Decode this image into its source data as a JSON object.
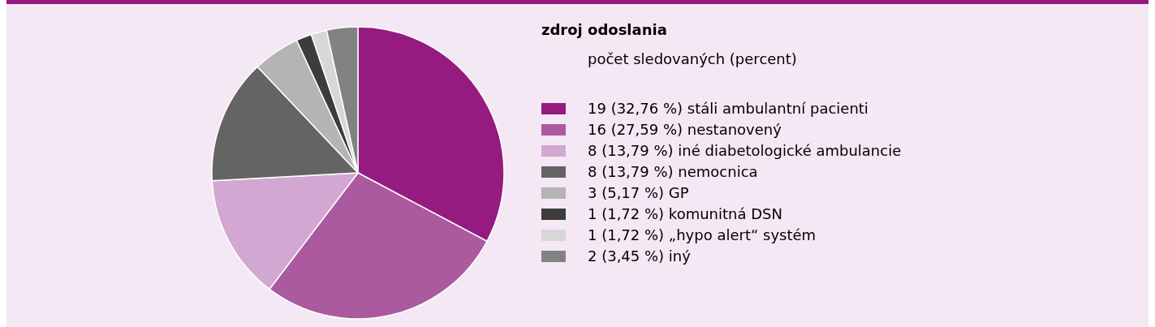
{
  "chart_data": {
    "type": "pie",
    "legend_title": "zdroj odoslania",
    "annotations": [
      "počet sledovaných (percent)"
    ],
    "categories": [
      "stáli ambulantní pacienti",
      "nestanovený",
      "iné diabetologické ambulancie",
      "nemocnica",
      "GP",
      "komunitná DSN",
      "„hypo alert“ systém",
      "iný"
    ],
    "values": [
      19,
      16,
      8,
      8,
      3,
      1,
      1,
      2
    ],
    "value_labels": [
      "19 (32,76 %)",
      "16 (27,59 %)",
      "8 (13,79 %)",
      "8 (13,79 %)",
      "3 (5,17 %)",
      "1 (1,72 %)",
      "1 (1,72 %)",
      "2 (3,45 %)"
    ],
    "colors": [
      "#951b81",
      "#ab5a9f",
      "#d2a8d2",
      "#646464",
      "#b4b4b4",
      "#3c3c3c",
      "#d7d7d7",
      "#828282"
    ],
    "legend": "right"
  }
}
